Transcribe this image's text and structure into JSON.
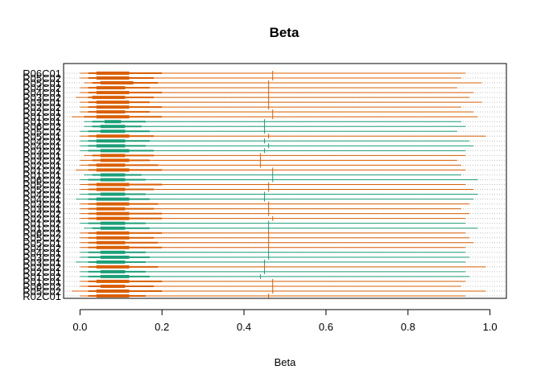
{
  "chart_data": {
    "type": "forest-range",
    "title": "Beta",
    "xlabel": "Beta",
    "ylabel": "",
    "xlim": [
      -0.04,
      1.04
    ],
    "x_ticks": [
      0.0,
      0.2,
      0.4,
      0.6,
      0.8,
      1.0
    ],
    "x_tick_labels": [
      "0.0",
      "0.2",
      "0.4",
      "0.6",
      "0.8",
      "1.0"
    ],
    "grid": "horizontal-dotted",
    "colors": {
      "orange": "#d95f02",
      "green": "#1b9e77",
      "grid": "#bdbdbd",
      "axis": "#000000"
    },
    "row_labels": [
      "R06C01",
      "R05C02",
      "R05C01",
      "R04C02",
      "R04C01",
      "R03C02",
      "R03C01",
      "R02C02",
      "R02C01",
      "R01C02",
      "R01C01",
      "R06C02",
      "R05C02",
      "R05C01",
      "R04C02",
      "R04C01",
      "R03C02",
      "R03C01",
      "R02C02",
      "R02C01",
      "R01C02",
      "R01C01",
      "R06C02",
      "R05C02",
      "R05C01",
      "R04C02",
      "R04C01",
      "R03C02",
      "R03C01",
      "R02C02",
      "R02C01",
      "R01C02",
      "R01C01",
      "R06C02",
      "R05C02",
      "R05C01",
      "R04C02",
      "R04C01",
      "R03C02",
      "R03C01",
      "R02C02",
      "R02C01",
      "R01C02",
      "R01C01",
      "R06C02",
      "R05C02",
      "R02C01"
    ],
    "visible_row_labels": {
      "top": "R06C01",
      "bottom": "R02C01"
    },
    "rows": [
      {
        "color": "orange",
        "q10": [
          0.04,
          0.12
        ],
        "q50": [
          0.02,
          0.2
        ],
        "q90": [
          0.0,
          0.94
        ],
        "median": 0.47
      },
      {
        "color": "orange",
        "q10": [
          0.04,
          0.12
        ],
        "q50": [
          0.02,
          0.18
        ],
        "q90": [
          0.0,
          0.93
        ],
        "median": 0.47
      },
      {
        "color": "orange",
        "q10": [
          0.05,
          0.13
        ],
        "q50": [
          0.03,
          0.19
        ],
        "q90": [
          0.01,
          0.98
        ],
        "median": 0.46
      },
      {
        "color": "orange",
        "q10": [
          0.04,
          0.11
        ],
        "q50": [
          0.02,
          0.17
        ],
        "q90": [
          0.0,
          0.92
        ],
        "median": 0.46
      },
      {
        "color": "orange",
        "q10": [
          0.04,
          0.12
        ],
        "q50": [
          0.02,
          0.2
        ],
        "q90": [
          0.0,
          0.96
        ],
        "median": 0.46
      },
      {
        "color": "orange",
        "q10": [
          0.03,
          0.11
        ],
        "q50": [
          0.02,
          0.18
        ],
        "q90": [
          -0.01,
          0.95
        ],
        "median": 0.46
      },
      {
        "color": "orange",
        "q10": [
          0.04,
          0.12
        ],
        "q50": [
          0.02,
          0.17
        ],
        "q90": [
          0.0,
          0.98
        ],
        "median": 0.46
      },
      {
        "color": "orange",
        "q10": [
          0.04,
          0.12
        ],
        "q50": [
          0.02,
          0.2
        ],
        "q90": [
          0.0,
          0.93
        ],
        "median": 0.46
      },
      {
        "color": "orange",
        "q10": [
          0.04,
          0.11
        ],
        "q50": [
          0.02,
          0.17
        ],
        "q90": [
          0.0,
          0.96
        ],
        "median": 0.47
      },
      {
        "color": "orange",
        "q10": [
          0.04,
          0.12
        ],
        "q50": [
          0.01,
          0.2
        ],
        "q90": [
          -0.02,
          0.97
        ],
        "median": 0.47
      },
      {
        "color": "green",
        "q10": [
          0.06,
          0.1
        ],
        "q50": [
          0.03,
          0.16
        ],
        "q90": [
          0.01,
          0.93
        ],
        "median": 0.45
      },
      {
        "color": "green",
        "q10": [
          0.05,
          0.11
        ],
        "q50": [
          0.03,
          0.15
        ],
        "q90": [
          0.01,
          0.94
        ],
        "median": 0.45
      },
      {
        "color": "green",
        "q10": [
          0.05,
          0.11
        ],
        "q50": [
          0.02,
          0.17
        ],
        "q90": [
          0.0,
          0.92
        ],
        "median": 0.45
      },
      {
        "color": "orange",
        "q10": [
          0.04,
          0.12
        ],
        "q50": [
          0.02,
          0.18
        ],
        "q90": [
          0.0,
          0.99
        ],
        "median": 0.46
      },
      {
        "color": "green",
        "q10": [
          0.04,
          0.11
        ],
        "q50": [
          0.02,
          0.17
        ],
        "q90": [
          0.0,
          0.95
        ],
        "median": 0.45
      },
      {
        "color": "green",
        "q10": [
          0.04,
          0.11
        ],
        "q50": [
          0.02,
          0.16
        ],
        "q90": [
          0.0,
          0.96
        ],
        "median": 0.46
      },
      {
        "color": "green",
        "q10": [
          0.05,
          0.12
        ],
        "q50": [
          0.02,
          0.18
        ],
        "q90": [
          0.0,
          0.94
        ],
        "median": 0.45
      },
      {
        "color": "orange",
        "q10": [
          0.05,
          0.11
        ],
        "q50": [
          0.03,
          0.18
        ],
        "q90": [
          0.01,
          0.94
        ],
        "median": 0.44
      },
      {
        "color": "orange",
        "q10": [
          0.05,
          0.12
        ],
        "q50": [
          0.03,
          0.17
        ],
        "q90": [
          0.0,
          0.92
        ],
        "median": 0.44
      },
      {
        "color": "orange",
        "q10": [
          0.04,
          0.11
        ],
        "q50": [
          0.02,
          0.19
        ],
        "q90": [
          0.0,
          0.93
        ],
        "median": 0.44
      },
      {
        "color": "orange",
        "q10": [
          0.04,
          0.12
        ],
        "q50": [
          0.02,
          0.2
        ],
        "q90": [
          -0.01,
          0.94
        ],
        "median": 0.47
      },
      {
        "color": "green",
        "q10": [
          0.05,
          0.11
        ],
        "q50": [
          0.03,
          0.15
        ],
        "q90": [
          0.01,
          0.93
        ],
        "median": 0.47
      },
      {
        "color": "green",
        "q10": [
          0.05,
          0.11
        ],
        "q50": [
          0.02,
          0.16
        ],
        "q90": [
          0.0,
          0.97
        ],
        "median": 0.47
      },
      {
        "color": "orange",
        "q10": [
          0.04,
          0.12
        ],
        "q50": [
          0.02,
          0.2
        ],
        "q90": [
          0.0,
          0.94
        ],
        "median": 0.46
      },
      {
        "color": "orange",
        "q10": [
          0.04,
          0.11
        ],
        "q50": [
          0.02,
          0.18
        ],
        "q90": [
          0.0,
          0.96
        ],
        "median": 0.46
      },
      {
        "color": "green",
        "q10": [
          0.05,
          0.11
        ],
        "q50": [
          0.02,
          0.16
        ],
        "q90": [
          0.0,
          0.97
        ],
        "median": 0.45
      },
      {
        "color": "green",
        "q10": [
          0.04,
          0.12
        ],
        "q50": [
          0.02,
          0.17
        ],
        "q90": [
          -0.01,
          0.96
        ],
        "median": 0.45
      },
      {
        "color": "orange",
        "q10": [
          0.04,
          0.12
        ],
        "q50": [
          0.02,
          0.19
        ],
        "q90": [
          0.0,
          0.95
        ],
        "median": 0.46
      },
      {
        "color": "orange",
        "q10": [
          0.04,
          0.11
        ],
        "q50": [
          0.02,
          0.18
        ],
        "q90": [
          0.0,
          0.93
        ],
        "median": 0.46
      },
      {
        "color": "orange",
        "q10": [
          0.04,
          0.12
        ],
        "q50": [
          0.02,
          0.2
        ],
        "q90": [
          0.0,
          0.95
        ],
        "median": 0.46
      },
      {
        "color": "orange",
        "q10": [
          0.04,
          0.12
        ],
        "q50": [
          0.02,
          0.2
        ],
        "q90": [
          0.0,
          0.94
        ],
        "median": 0.47
      },
      {
        "color": "green",
        "q10": [
          0.05,
          0.11
        ],
        "q50": [
          0.02,
          0.16
        ],
        "q90": [
          0.0,
          0.94
        ],
        "median": 0.46
      },
      {
        "color": "green",
        "q10": [
          0.05,
          0.11
        ],
        "q50": [
          0.03,
          0.17
        ],
        "q90": [
          0.01,
          0.97
        ],
        "median": 0.46
      },
      {
        "color": "orange",
        "q10": [
          0.04,
          0.12
        ],
        "q50": [
          0.02,
          0.2
        ],
        "q90": [
          0.0,
          0.94
        ],
        "median": 0.46
      },
      {
        "color": "orange",
        "q10": [
          0.04,
          0.12
        ],
        "q50": [
          0.02,
          0.18
        ],
        "q90": [
          0.0,
          0.95
        ],
        "median": 0.46
      },
      {
        "color": "orange",
        "q10": [
          0.04,
          0.11
        ],
        "q50": [
          0.02,
          0.19
        ],
        "q90": [
          0.0,
          0.96
        ],
        "median": 0.46
      },
      {
        "color": "orange",
        "q10": [
          0.04,
          0.12
        ],
        "q50": [
          0.02,
          0.2
        ],
        "q90": [
          0.0,
          0.94
        ],
        "median": 0.46
      },
      {
        "color": "green",
        "q10": [
          0.05,
          0.11
        ],
        "q50": [
          0.02,
          0.16
        ],
        "q90": [
          0.0,
          0.94
        ],
        "median": 0.46
      },
      {
        "color": "green",
        "q10": [
          0.05,
          0.12
        ],
        "q50": [
          0.02,
          0.17
        ],
        "q90": [
          0.0,
          0.95
        ],
        "median": 0.46
      },
      {
        "color": "green",
        "q10": [
          0.04,
          0.11
        ],
        "q50": [
          0.02,
          0.16
        ],
        "q90": [
          -0.01,
          0.94
        ],
        "median": 0.45
      },
      {
        "color": "orange",
        "q10": [
          0.04,
          0.12
        ],
        "q50": [
          0.02,
          0.19
        ],
        "q90": [
          0.0,
          0.99
        ],
        "median": 0.45
      },
      {
        "color": "green",
        "q10": [
          0.05,
          0.11
        ],
        "q50": [
          0.02,
          0.16
        ],
        "q90": [
          0.0,
          0.94
        ],
        "median": 0.45
      },
      {
        "color": "green",
        "q10": [
          0.05,
          0.12
        ],
        "q50": [
          0.02,
          0.17
        ],
        "q90": [
          0.0,
          0.95
        ],
        "median": 0.44
      },
      {
        "color": "orange",
        "q10": [
          0.04,
          0.12
        ],
        "q50": [
          0.02,
          0.2
        ],
        "q90": [
          0.0,
          0.94
        ],
        "median": 0.47
      },
      {
        "color": "orange",
        "q10": [
          0.05,
          0.11
        ],
        "q50": [
          0.02,
          0.18
        ],
        "q90": [
          0.0,
          0.93
        ],
        "median": 0.47
      },
      {
        "color": "orange",
        "q10": [
          0.04,
          0.12
        ],
        "q50": [
          0.02,
          0.2
        ],
        "q90": [
          -0.02,
          0.99
        ],
        "median": 0.47
      },
      {
        "color": "orange",
        "q10": [
          0.04,
          0.12
        ],
        "q50": [
          0.02,
          0.16
        ],
        "q90": [
          0.0,
          0.94
        ],
        "median": 0.46
      }
    ]
  }
}
